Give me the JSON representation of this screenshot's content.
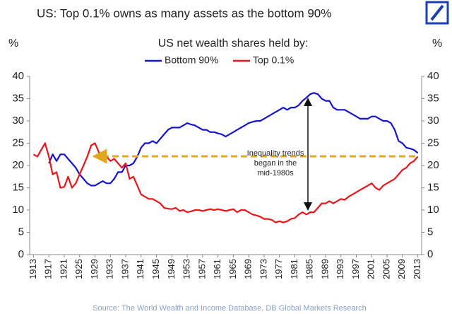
{
  "chart_data": {
    "type": "line",
    "title": "US: Top 0.1% owns as many assets as the bottom 90%",
    "subtitle": "US net wealth shares held by:",
    "ylabel": "%",
    "y2label": "%",
    "annotation_lines": [
      "Inequality trends",
      "began in the",
      "mid-1980s"
    ],
    "source": "Source: The World Wealth and Income Database, DB Global Markets Research",
    "x": [
      1913,
      1914,
      1915,
      1916,
      1917,
      1918,
      1919,
      1920,
      1921,
      1922,
      1923,
      1924,
      1925,
      1926,
      1927,
      1928,
      1929,
      1930,
      1931,
      1932,
      1933,
      1934,
      1935,
      1936,
      1937,
      1938,
      1939,
      1940,
      1941,
      1942,
      1943,
      1944,
      1945,
      1946,
      1947,
      1948,
      1949,
      1950,
      1951,
      1952,
      1953,
      1954,
      1955,
      1956,
      1957,
      1958,
      1959,
      1960,
      1961,
      1962,
      1963,
      1964,
      1965,
      1966,
      1967,
      1968,
      1969,
      1970,
      1971,
      1972,
      1973,
      1974,
      1975,
      1976,
      1977,
      1978,
      1979,
      1980,
      1981,
      1982,
      1983,
      1984,
      1985,
      1986,
      1987,
      1988,
      1989,
      1990,
      1991,
      1992,
      1993,
      1994,
      1995,
      1996,
      1997,
      1998,
      1999,
      2000,
      2001,
      2002,
      2003,
      2004,
      2005,
      2006,
      2007,
      2008,
      2009,
      2010,
      2011,
      2012,
      2013
    ],
    "series": [
      {
        "name": "Bottom 90%",
        "color": "#1414cc",
        "values": [
          null,
          null,
          null,
          null,
          20.5,
          22.5,
          21,
          22.5,
          22.5,
          21.5,
          20.5,
          19.5,
          18,
          17,
          16,
          15.5,
          15.5,
          16,
          16.5,
          16,
          16,
          17,
          18.5,
          18.5,
          20,
          20,
          20.5,
          22,
          24,
          25,
          25,
          25.5,
          25,
          26,
          27,
          28,
          28.5,
          28.5,
          28.5,
          29,
          29.5,
          29.2,
          29,
          28.5,
          28,
          28,
          27.5,
          27.5,
          27.2,
          27,
          26.5,
          27,
          27.5,
          28,
          28.5,
          29,
          29.5,
          29.8,
          30,
          30,
          30.5,
          31,
          31.5,
          32,
          32.5,
          33,
          32.5,
          33,
          33,
          33.5,
          34.5,
          35.2,
          36,
          36.3,
          36,
          35,
          34.5,
          34.5,
          33,
          32.5,
          32.5,
          32.5,
          32,
          31.5,
          31,
          30.5,
          30.5,
          30.5,
          31,
          31,
          30.5,
          30,
          30,
          29.5,
          28,
          25.5,
          25,
          24,
          23.8,
          23.5,
          22.8
        ]
      },
      {
        "name": "Top 0.1%",
        "color": "#e8151b",
        "values": [
          22.5,
          22,
          23.5,
          25,
          22,
          18,
          18.5,
          15,
          15.2,
          17.5,
          15,
          16,
          18,
          20,
          22,
          24.5,
          25,
          23,
          21.5,
          22,
          21,
          21.5,
          20.5,
          19.5,
          20.5,
          17,
          17.5,
          15.5,
          13.5,
          13,
          12.5,
          12.5,
          12,
          11.5,
          10.5,
          10.3,
          10.2,
          10.5,
          9.8,
          10,
          9.5,
          9.7,
          10,
          10,
          9.8,
          10,
          10.2,
          10,
          10.2,
          10,
          9.8,
          10,
          10.2,
          9.5,
          10,
          10,
          9.5,
          9,
          8.8,
          8.5,
          8,
          8,
          7.8,
          7.2,
          7.5,
          7.2,
          7.5,
          8,
          8.2,
          9,
          9.5,
          9,
          9.5,
          9.5,
          10.5,
          11.5,
          11.5,
          12,
          11.5,
          12,
          12.5,
          12.3,
          13,
          13.5,
          14,
          14.5,
          15,
          15.5,
          16,
          15,
          14.5,
          15.5,
          16,
          16.5,
          17,
          18,
          19,
          19.5,
          20.5,
          21,
          22
        ]
      }
    ],
    "xlim": [
      1912,
      2014
    ],
    "xticks": [
      1913,
      1917,
      1921,
      1925,
      1929,
      1933,
      1937,
      1941,
      1945,
      1949,
      1953,
      1957,
      1961,
      1965,
      1969,
      1973,
      1977,
      1981,
      1985,
      1989,
      1993,
      1997,
      2001,
      2005,
      2009,
      2013
    ],
    "ylim": [
      0,
      40
    ],
    "yticks": [
      0,
      5,
      10,
      15,
      20,
      25,
      30,
      35,
      40
    ],
    "y2lim": [
      0,
      40
    ],
    "y2ticks": [
      0,
      5,
      10,
      15,
      20,
      25,
      30,
      35,
      40
    ],
    "grid": false
  }
}
